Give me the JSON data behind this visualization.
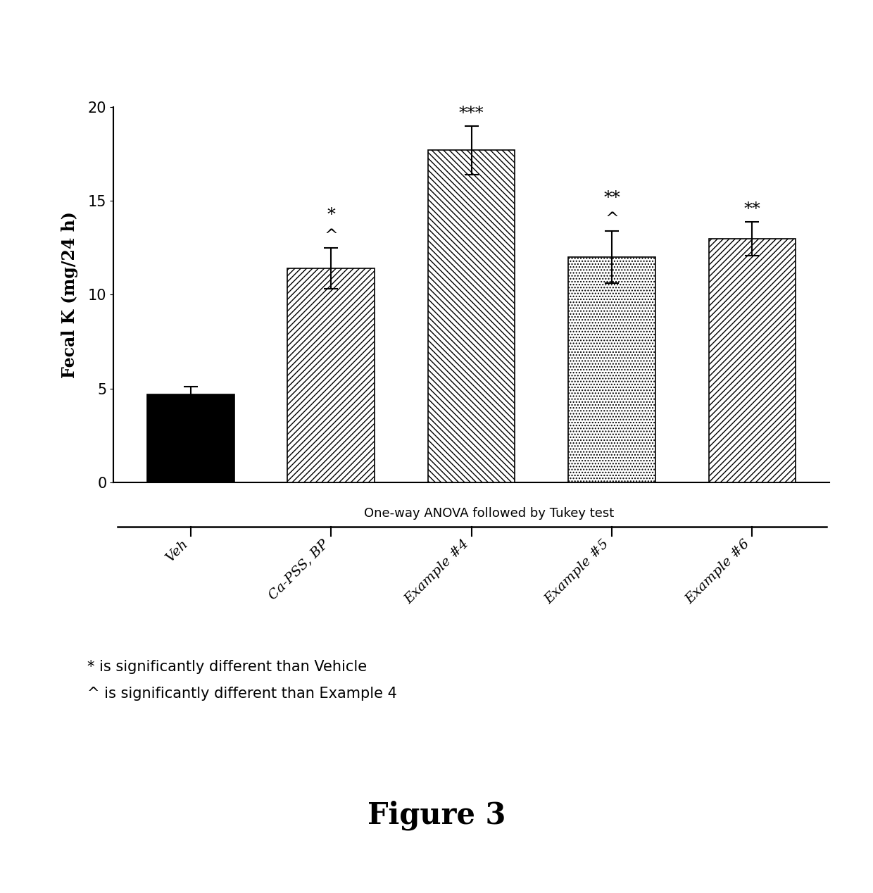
{
  "categories": [
    "Veh",
    "Ca-PSS, BP",
    "Example #4",
    "Example #5",
    "Example #6"
  ],
  "values": [
    4.7,
    11.4,
    17.7,
    12.0,
    13.0
  ],
  "errors": [
    0.4,
    1.1,
    1.3,
    1.4,
    0.9
  ],
  "ylabel": "Fecal K (mg/24 h)",
  "ylim": [
    0,
    20
  ],
  "yticks": [
    0,
    5,
    10,
    15,
    20
  ],
  "anova_text": "One-way ANOVA followed by Tukey test",
  "legend_text1": "* is significantly different than Vehicle",
  "legend_text2": "^ is significantly different than Example 4",
  "figure_label": "Figure 3",
  "hatch_patterns": [
    "",
    "////",
    "\\\\\\\\",
    "....",
    "////"
  ],
  "bar_colors": [
    "black",
    "white",
    "white",
    "white",
    "white"
  ],
  "background_color": "#ffffff",
  "bar_width": 0.62
}
